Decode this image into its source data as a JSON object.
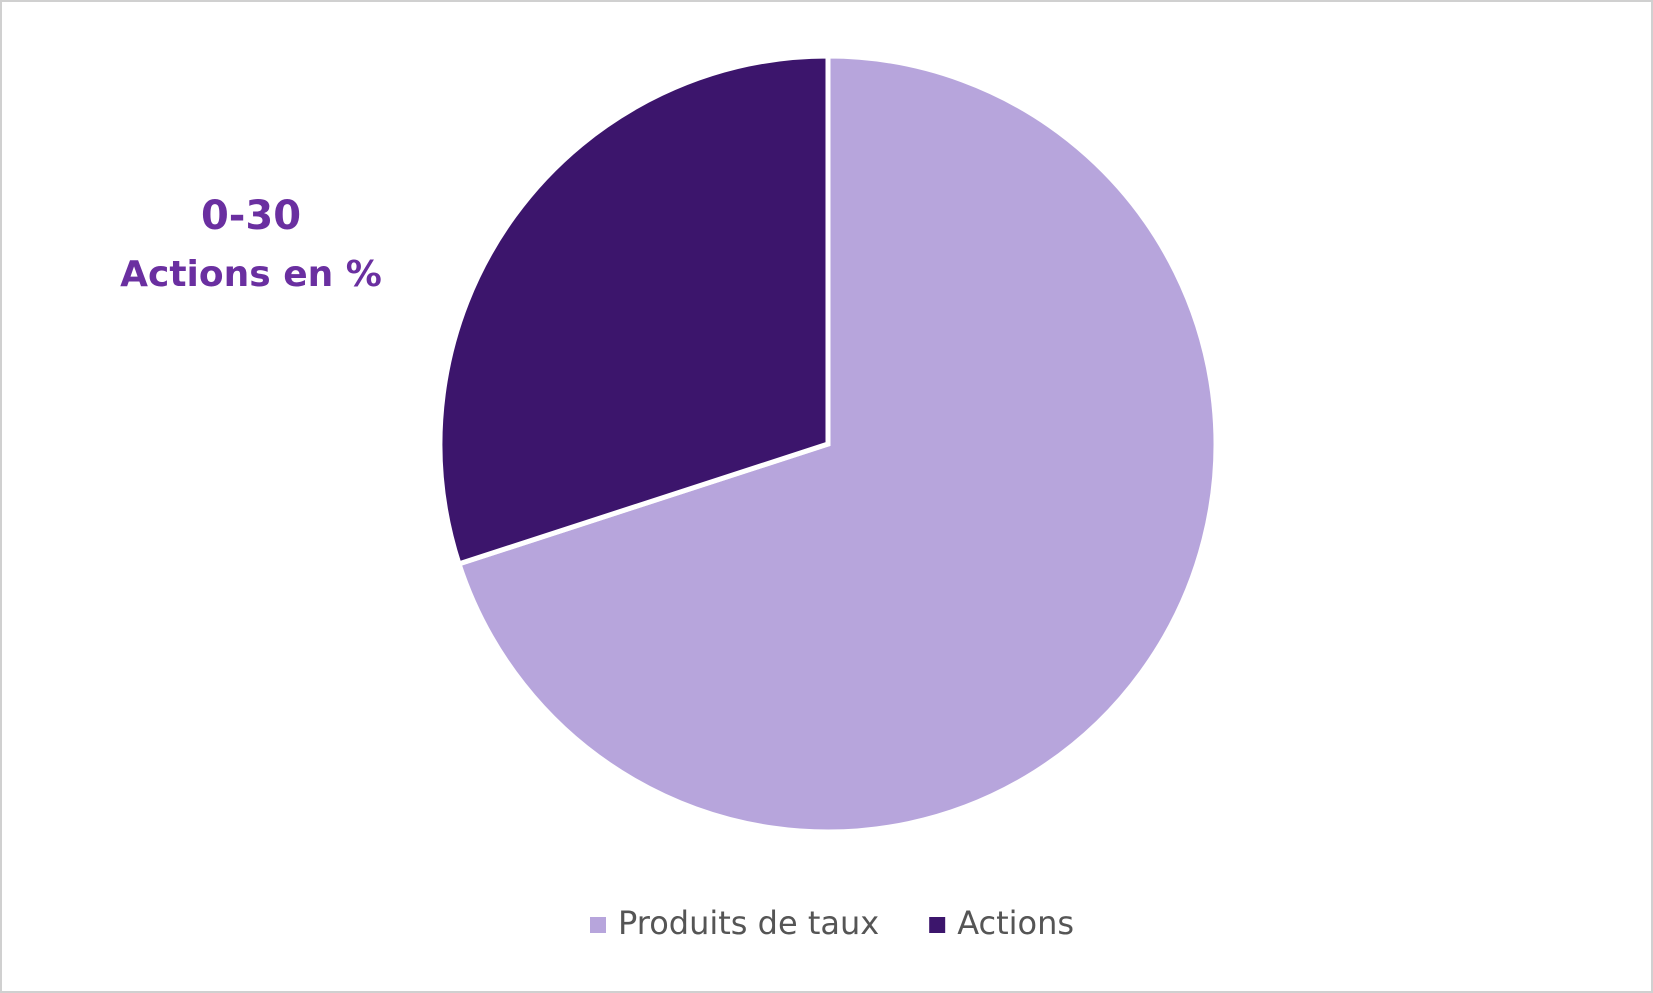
{
  "chart_data": {
    "type": "pie",
    "categories": [
      "Produits de taux",
      "Actions"
    ],
    "values": [
      70,
      30
    ],
    "colors": [
      "#b7a5dc",
      "#3c156c"
    ],
    "annotations": [
      "0-30",
      "Actions en %"
    ],
    "legend": "bottom"
  }
}
